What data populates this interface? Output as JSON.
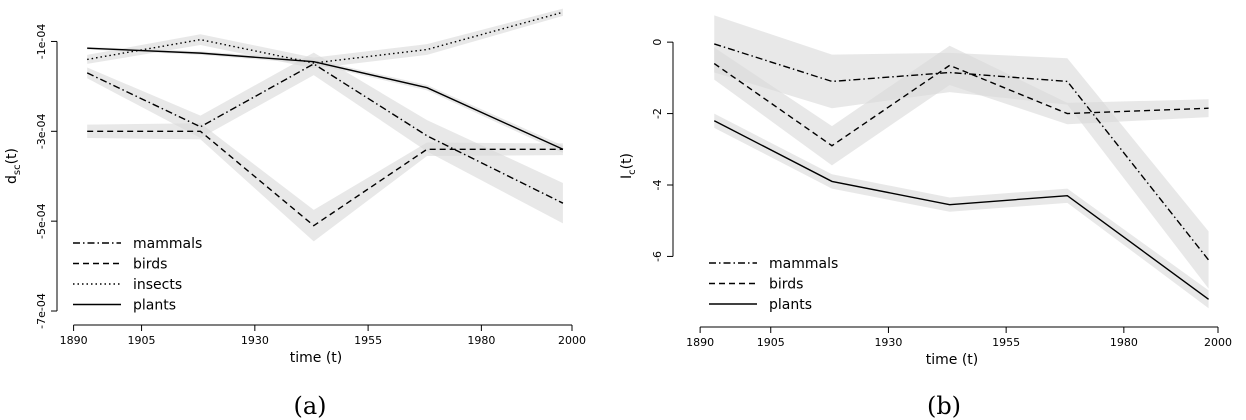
{
  "chart_data": [
    {
      "type": "line",
      "panel_label": "(a)",
      "xlabel": "time (t)",
      "ylabel_main": "d",
      "ylabel_sub": "sc",
      "ylabel_suffix": "(t)",
      "xlim": [
        1887,
        2000
      ],
      "ylim": [
        -0.00072,
        -3e-05
      ],
      "x_ticks": [
        1890,
        1905,
        1930,
        1955,
        1980,
        2000
      ],
      "y_ticks": [
        -0.0007,
        -0.0005,
        -0.0003,
        -0.0001
      ],
      "y_tick_labels": [
        "-7e-04",
        "-5e-04",
        "-3e-04",
        "-1e-04"
      ],
      "x": [
        1893,
        1918,
        1943,
        1968,
        1998
      ],
      "legend_position": "bottom-left",
      "series": [
        {
          "name": "mammals",
          "style": "dashdot",
          "values": [
            -0.00017,
            -0.00029,
            -0.00015,
            -0.00031,
            -0.00046
          ],
          "band": [
            1.2e-05,
            2.5e-05,
            2.5e-05,
            3.5e-05,
            4.5e-05
          ]
        },
        {
          "name": "birds",
          "style": "dashed",
          "values": [
            -0.0003,
            -0.0003,
            -0.00051,
            -0.00034,
            -0.00034
          ],
          "band": [
            1.5e-05,
            1.8e-05,
            3.5e-05,
            1.5e-05,
            1.3e-05
          ]
        },
        {
          "name": "insects",
          "style": "dotted",
          "values": [
            -0.00014,
            -9.6e-05,
            -0.000148,
            -0.000118,
            -3.5e-05
          ],
          "band": [
            1e-05,
            1.2e-05,
            1.2e-05,
            1.2e-05,
            8e-06
          ]
        },
        {
          "name": "plants",
          "style": "solid",
          "values": [
            -0.000115,
            -0.000126,
            -0.000145,
            -0.000203,
            -0.00034
          ],
          "band": [
            3e-06,
            4e-06,
            5e-06,
            6e-06,
            8e-06
          ]
        }
      ]
    },
    {
      "type": "line",
      "panel_label": "(b)",
      "xlabel": "time (t)",
      "ylabel_main": "I",
      "ylabel_sub": "c",
      "ylabel_suffix": "(t)",
      "xlim": [
        1887,
        2000
      ],
      "ylim": [
        -7.5,
        0.9
      ],
      "x_ticks": [
        1890,
        1905,
        1930,
        1955,
        1980,
        2000
      ],
      "y_ticks": [
        -6,
        -4,
        -2,
        0
      ],
      "y_tick_labels": [
        "-6",
        "-4",
        "-2",
        "0"
      ],
      "x": [
        1893,
        1918,
        1943,
        1968,
        1998
      ],
      "legend_position": "bottom-left",
      "series": [
        {
          "name": "mammals",
          "style": "dashdot",
          "values": [
            -0.05,
            -1.1,
            -0.85,
            -1.1,
            -6.1
          ],
          "band": [
            0.8,
            0.75,
            0.55,
            0.65,
            0.8
          ]
        },
        {
          "name": "birds",
          "style": "dashed",
          "values": [
            -0.6,
            -2.9,
            -0.65,
            -2.0,
            -1.85
          ],
          "band": [
            0.45,
            0.55,
            0.55,
            0.3,
            0.25
          ]
        },
        {
          "name": "plants",
          "style": "solid",
          "values": [
            -2.2,
            -3.9,
            -4.55,
            -4.3,
            -7.2
          ],
          "band": [
            0.2,
            0.2,
            0.2,
            0.2,
            0.25
          ]
        }
      ]
    }
  ]
}
